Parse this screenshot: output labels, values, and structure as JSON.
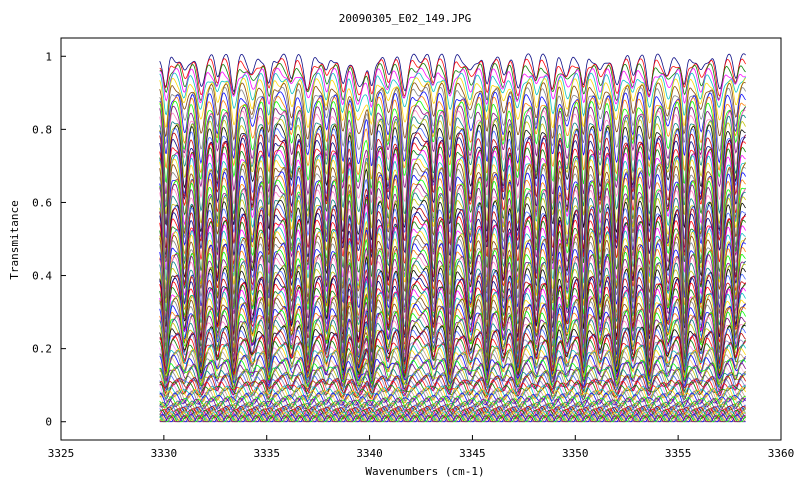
{
  "chart_data": {
    "type": "line",
    "title": "20090305_E02_149.JPG",
    "xlabel": "Wavenumbers (cm-1)",
    "ylabel": "Transmitance",
    "xlim": [
      3325,
      3360
    ],
    "ylim": [
      -0.05,
      1.05
    ],
    "xticks": [
      3325,
      3330,
      3335,
      3340,
      3345,
      3350,
      3355,
      3360
    ],
    "yticks": [
      0,
      0.2,
      0.4,
      0.6,
      0.8,
      1
    ],
    "ytick_labels": [
      "0",
      "0.2",
      "0.4",
      "0.6",
      "0.8",
      "1"
    ],
    "grid": false,
    "legend": "none",
    "x_range_of_data": [
      3329.8,
      3358.3
    ],
    "series_count": 120,
    "series_description_note": "",
    "absorption_lines": [
      3330.1,
      3331.0,
      3331.8,
      3332.6,
      3333.4,
      3334.3,
      3335.1,
      3336.2,
      3337.0,
      3337.9,
      3338.7,
      3339.4,
      3340.1,
      3340.9,
      3341.7,
      3343.1,
      3343.9,
      3344.9,
      3345.7,
      3346.5,
      3347.2,
      3348.1,
      3348.9,
      3349.6,
      3350.4,
      3351.2,
      3352.0,
      3352.8,
      3353.6,
      3354.5,
      3355.3,
      3356.1,
      3357.0,
      3357.8
    ],
    "colors": [
      "#000080",
      "#ff0000",
      "#008000",
      "#ff00ff",
      "#00c0c0",
      "#ffd700",
      "#804000",
      "#808080",
      "#0000ff",
      "#ff8000",
      "#00ff00",
      "#800080",
      "#ff80c0",
      "#008080",
      "#c0c000",
      "#000000",
      "#4060ff",
      "#c00000"
    ]
  }
}
